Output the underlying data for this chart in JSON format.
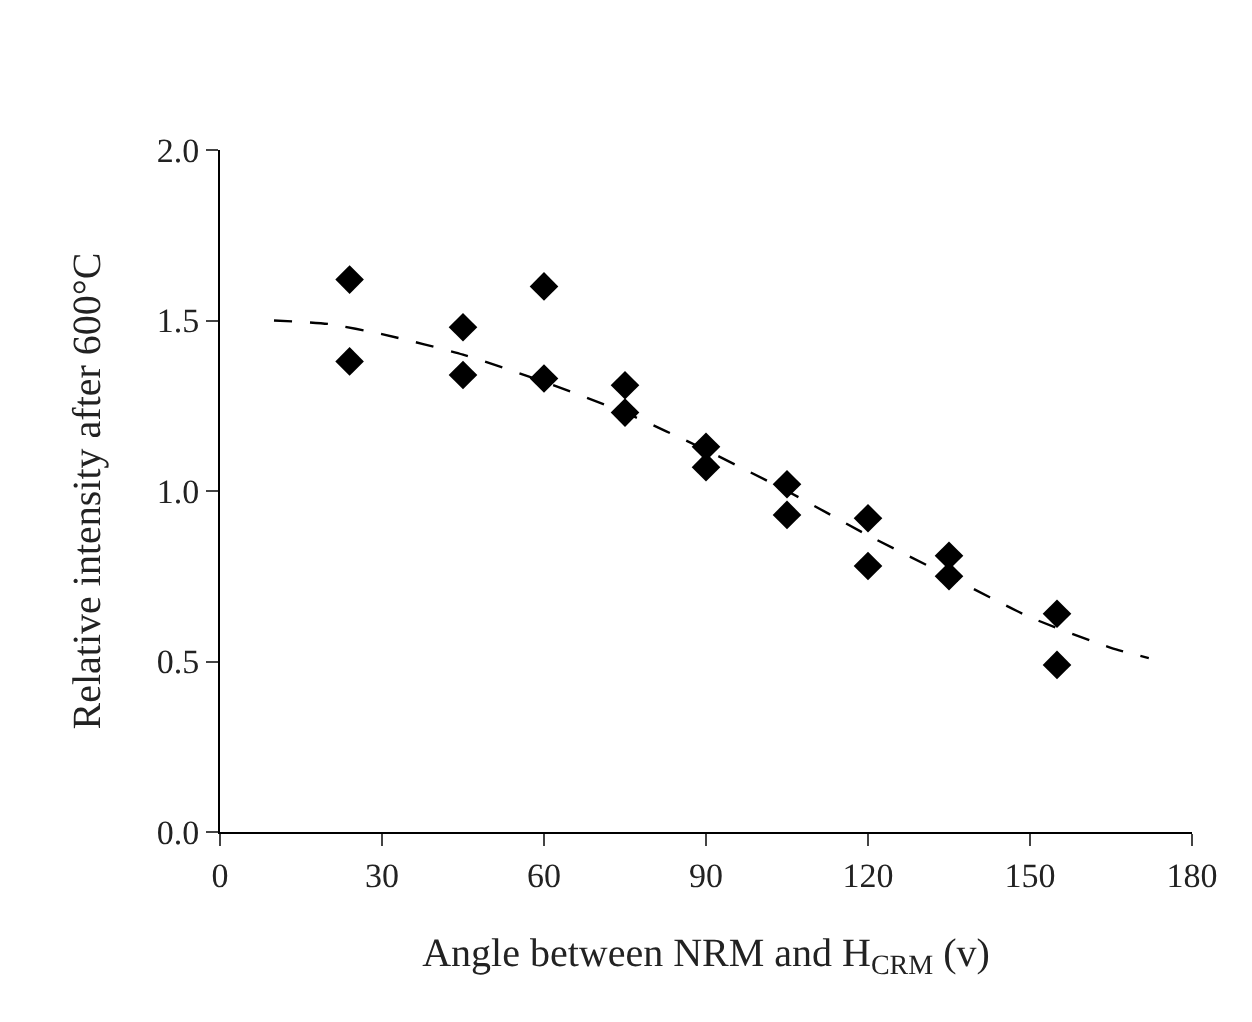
{
  "chart_data": {
    "type": "scatter",
    "xlabel": "Angle between NRM and H$_{CRM}$ (v)",
    "ylabel": "Relative intensity after 600°C",
    "xlim": [
      0,
      180
    ],
    "xticks": [
      0,
      30,
      60,
      90,
      120,
      150,
      180
    ],
    "ylim": [
      0,
      2
    ],
    "yticks": [
      {
        "value": 0,
        "label": "0.0"
      },
      {
        "value": 0.5,
        "label": "0.5"
      },
      {
        "value": 1,
        "label": "1.0"
      },
      {
        "value": 1.5,
        "label": "1.5"
      },
      {
        "value": 2,
        "label": "2.0"
      }
    ],
    "grid": false,
    "marker": "diamond",
    "series": [
      {
        "type": "scatter",
        "color": "#000000",
        "x": [
          24,
          24,
          45,
          45,
          60,
          60,
          75,
          75,
          90,
          90,
          105,
          105,
          120,
          120,
          135,
          135,
          155,
          155
        ],
        "values": [
          1.62,
          1.38,
          1.48,
          1.34,
          1.6,
          1.33,
          1.31,
          1.23,
          1.13,
          1.07,
          1.02,
          0.93,
          0.92,
          0.78,
          0.81,
          0.75,
          0.64,
          0.49
        ]
      },
      {
        "type": "line",
        "color": "#000000",
        "line_style": "dashed",
        "marker": "none",
        "x": [
          10,
          20,
          30,
          45,
          60,
          75,
          90,
          105,
          120,
          135,
          150,
          165,
          172
        ],
        "values": [
          1.5,
          1.49,
          1.46,
          1.4,
          1.32,
          1.23,
          1.12,
          1.0,
          0.87,
          0.75,
          0.63,
          0.54,
          0.51
        ]
      }
    ]
  }
}
